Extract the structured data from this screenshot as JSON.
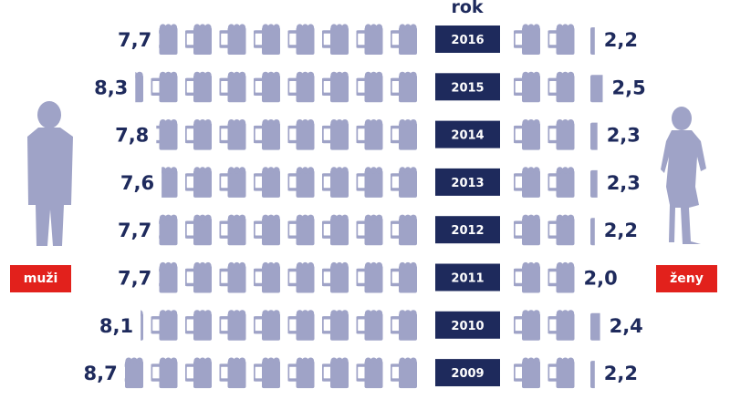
{
  "header": {
    "year_label": "rok"
  },
  "labels": {
    "men": "muži",
    "women": "ženy"
  },
  "colors": {
    "mug": "#9fa3c7",
    "year_box": "#1e2a5c",
    "value_text": "#1e2a5c",
    "badge": "#e2211c",
    "silhouette": "#9fa3c7"
  },
  "icons": {
    "unit": "beer-mug-icon",
    "men": "man-silhouette-icon",
    "women": "woman-silhouette-icon"
  },
  "chart_data": {
    "type": "pictogram",
    "categories": [
      "2016",
      "2015",
      "2014",
      "2013",
      "2012",
      "2011",
      "2010",
      "2009"
    ],
    "series": [
      {
        "name": "muži",
        "values": [
          "7,7",
          "8,3",
          "7,8",
          "7,6",
          "7,7",
          "7,7",
          "8,1",
          "8,7"
        ],
        "numeric": [
          7.7,
          8.3,
          7.8,
          7.6,
          7.7,
          7.7,
          8.1,
          8.7
        ]
      },
      {
        "name": "ženy",
        "values": [
          "2,2",
          "2,5",
          "2,3",
          "2,3",
          "2,2",
          "2,0",
          "2,4",
          "2,2"
        ],
        "numeric": [
          2.2,
          2.5,
          2.3,
          2.3,
          2.2,
          2.0,
          2.4,
          2.2
        ]
      }
    ]
  }
}
